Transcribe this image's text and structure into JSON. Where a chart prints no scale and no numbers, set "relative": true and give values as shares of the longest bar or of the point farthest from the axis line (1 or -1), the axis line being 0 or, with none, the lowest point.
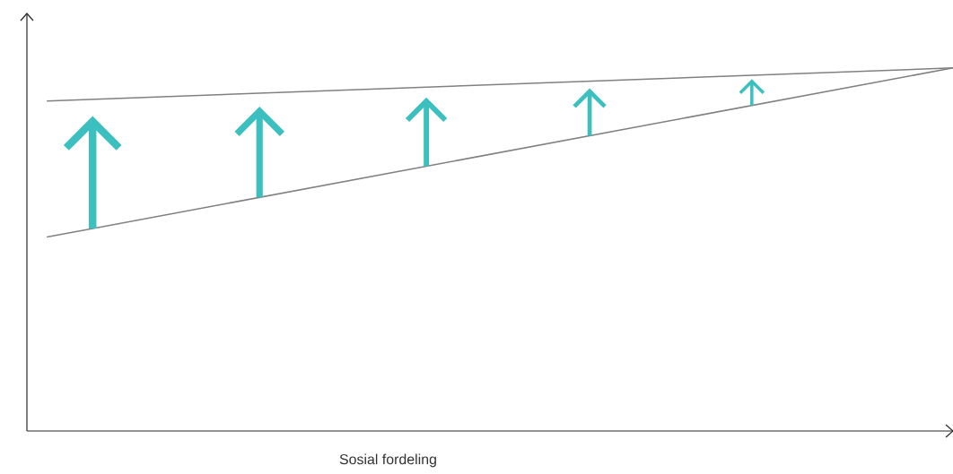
{
  "chart_data": {
    "type": "line",
    "relative": true,
    "xlabel": "Sosial fordeling",
    "categories": [
      null,
      null
    ],
    "series": [
      {
        "color": "#808080",
        "values": [
          0.909,
          1
        ]
      },
      {
        "color": "#808080",
        "values": [
          0.534,
          1
        ]
      }
    ]
  }
}
